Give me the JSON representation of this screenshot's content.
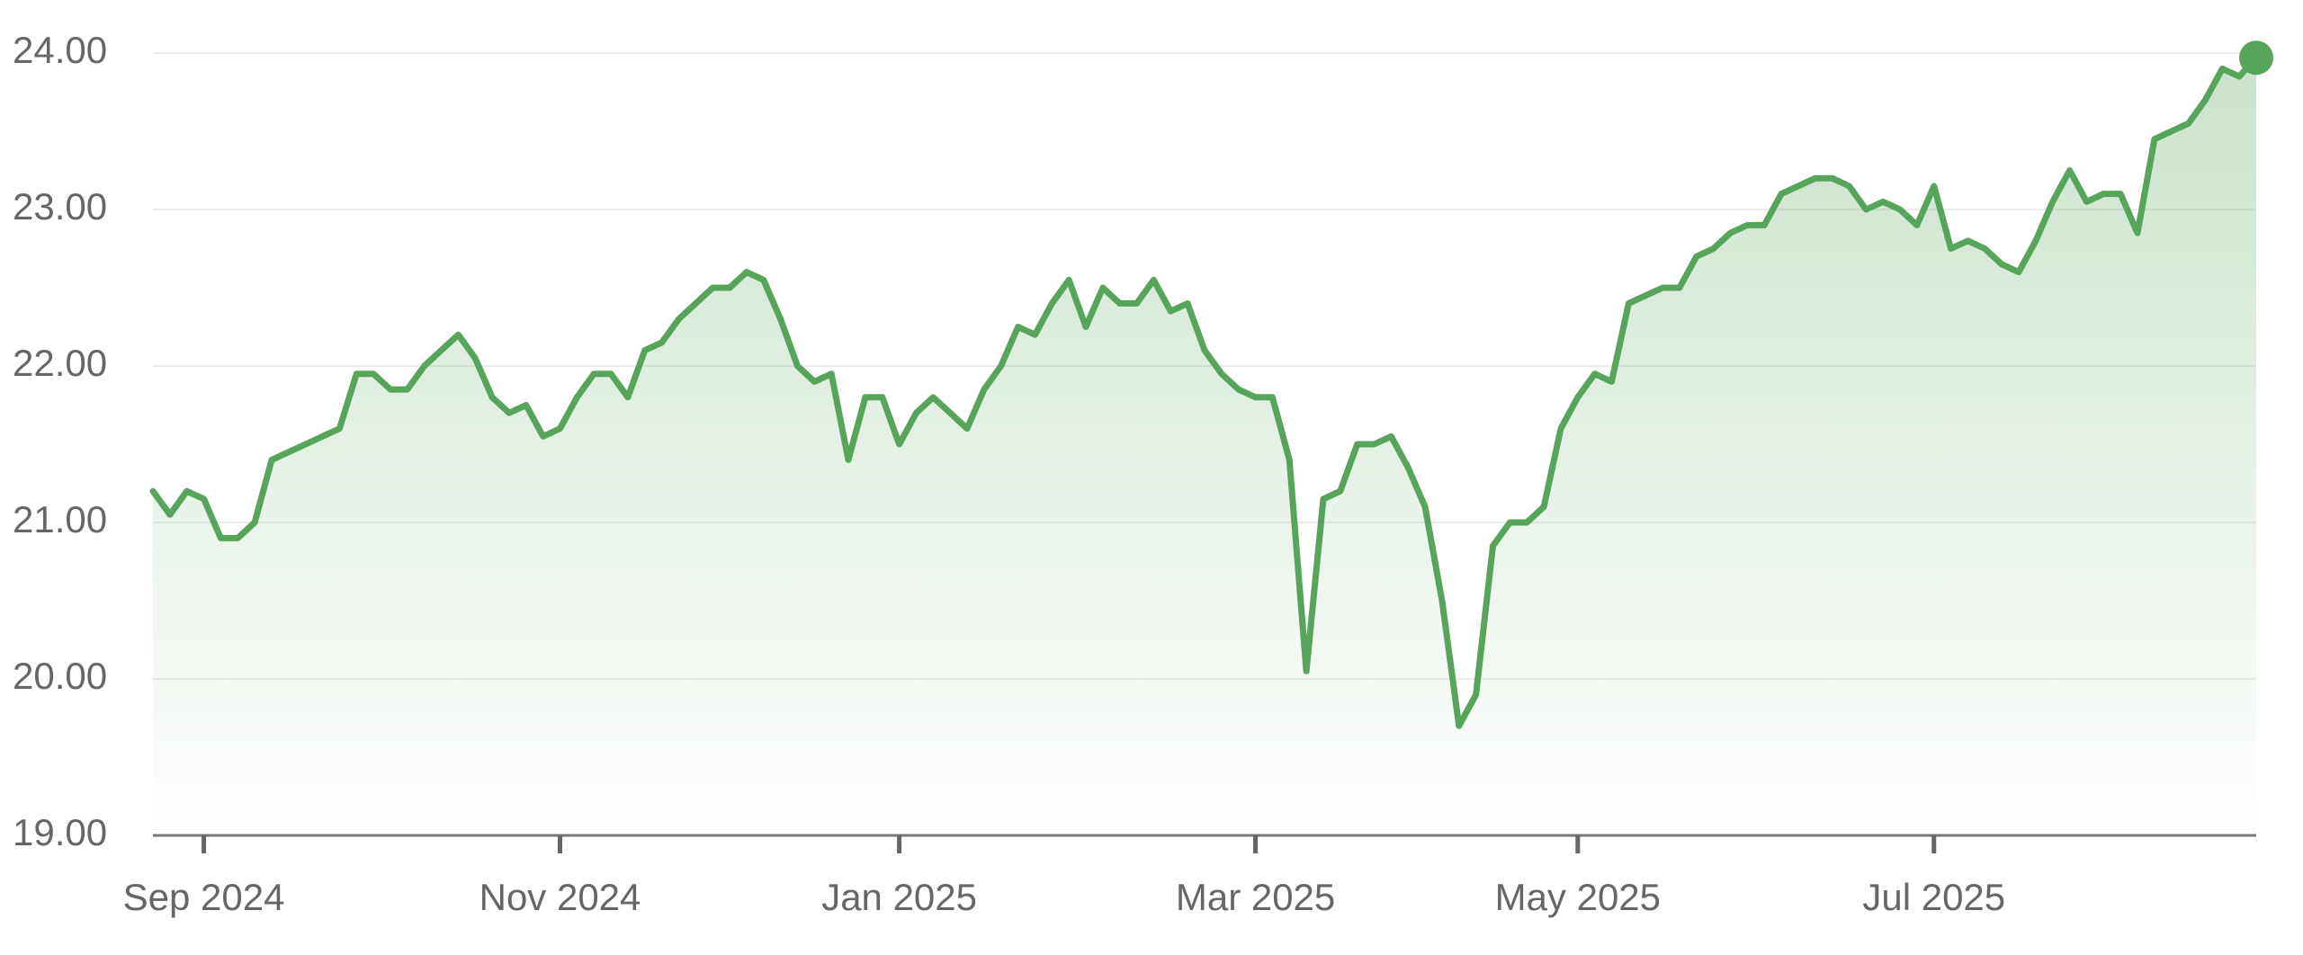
{
  "chart_data": {
    "type": "line",
    "color": "#57a55a",
    "grid": true,
    "ylim": [
      19,
      24
    ],
    "yticks": [
      {
        "value": 19,
        "label": "19.00"
      },
      {
        "value": 20,
        "label": "20.00"
      },
      {
        "value": 21,
        "label": "21.00"
      },
      {
        "value": 22,
        "label": "22.00"
      },
      {
        "value": 23,
        "label": "23.00"
      },
      {
        "value": 24,
        "label": "24.00"
      }
    ],
    "categories": [
      null,
      null,
      null,
      "Sep 2024",
      null,
      null,
      null,
      null,
      null,
      null,
      null,
      null,
      null,
      null,
      null,
      null,
      null,
      null,
      null,
      null,
      null,
      null,
      null,
      null,
      "Nov 2024",
      null,
      null,
      null,
      null,
      null,
      null,
      null,
      null,
      null,
      null,
      null,
      null,
      null,
      null,
      null,
      null,
      null,
      null,
      null,
      "Jan 2025",
      null,
      null,
      null,
      null,
      null,
      null,
      null,
      null,
      null,
      null,
      null,
      null,
      null,
      null,
      null,
      null,
      null,
      null,
      null,
      null,
      "Mar 2025",
      null,
      null,
      null,
      null,
      null,
      null,
      null,
      null,
      null,
      null,
      null,
      null,
      null,
      null,
      null,
      null,
      null,
      null,
      "May 2025",
      null,
      null,
      null,
      null,
      null,
      null,
      null,
      null,
      null,
      null,
      null,
      null,
      null,
      null,
      null,
      null,
      null,
      null,
      null,
      null,
      "Jul 2025",
      null,
      null,
      null,
      null,
      null,
      null,
      null,
      null,
      null,
      null,
      null,
      null,
      null,
      null,
      null,
      null,
      null,
      null,
      null
    ],
    "values": [
      21.2,
      21.05,
      21.2,
      21.15,
      20.9,
      20.9,
      21.0,
      21.4,
      21.45,
      21.5,
      21.55,
      21.6,
      21.95,
      21.95,
      21.85,
      21.85,
      22.0,
      22.1,
      22.2,
      22.05,
      21.8,
      21.7,
      21.75,
      21.55,
      21.6,
      21.8,
      21.95,
      21.95,
      21.8,
      22.1,
      22.15,
      22.3,
      22.4,
      22.5,
      22.5,
      22.6,
      22.55,
      22.3,
      22.0,
      21.9,
      21.95,
      21.4,
      21.8,
      21.8,
      21.5,
      21.7,
      21.8,
      21.7,
      21.6,
      21.85,
      22.0,
      22.25,
      22.2,
      22.4,
      22.55,
      22.25,
      22.5,
      22.4,
      22.4,
      22.55,
      22.35,
      22.4,
      22.1,
      21.95,
      21.85,
      21.8,
      21.8,
      21.4,
      20.05,
      21.15,
      21.2,
      21.5,
      21.5,
      21.55,
      21.35,
      21.1,
      20.5,
      19.7,
      19.9,
      20.85,
      21.0,
      21.0,
      21.1,
      21.6,
      21.8,
      21.95,
      21.9,
      22.4,
      22.45,
      22.5,
      22.5,
      22.7,
      22.75,
      22.85,
      22.9,
      22.9,
      23.1,
      23.15,
      23.2,
      23.2,
      23.15,
      23.0,
      23.05,
      23.0,
      22.9,
      23.15,
      22.75,
      22.8,
      22.75,
      22.65,
      22.6,
      22.8,
      23.05,
      23.25,
      23.05,
      23.1,
      23.1,
      22.85,
      23.45,
      23.5,
      23.55,
      23.7,
      23.9,
      23.85,
      23.97
    ]
  }
}
